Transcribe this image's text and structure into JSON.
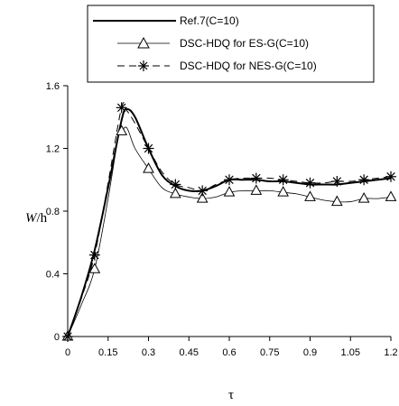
{
  "chart_data": {
    "type": "line",
    "title": "",
    "xlabel": "τ",
    "ylabel": "W/h",
    "ylabel_parts": {
      "italic": "W",
      "rest": "/h"
    },
    "xlim": [
      0,
      1.2
    ],
    "ylim": [
      0,
      1.6
    ],
    "xticks": [
      "0",
      "0.15",
      "0.3",
      "0.45",
      "0.6",
      "0.75",
      "0.9",
      "1.05",
      "1.2"
    ],
    "yticks": [
      "0",
      "0.4",
      "0.8",
      "1.2",
      "1.6"
    ],
    "grid": false,
    "legend_position": "top",
    "series": [
      {
        "name": "Ref.7(C=10)",
        "style": "solid",
        "marker": "none",
        "x": [
          0,
          0.05,
          0.1,
          0.15,
          0.2,
          0.22,
          0.25,
          0.3,
          0.35,
          0.4,
          0.45,
          0.5,
          0.55,
          0.6,
          0.65,
          0.7,
          0.75,
          0.8,
          0.85,
          0.9,
          0.95,
          1.0,
          1.05,
          1.1,
          1.15,
          1.2
        ],
        "y": [
          0,
          0.25,
          0.55,
          0.95,
          1.38,
          1.45,
          1.4,
          1.2,
          1.03,
          0.96,
          0.93,
          0.93,
          0.96,
          1.0,
          1.0,
          1.0,
          0.99,
          0.99,
          0.98,
          0.97,
          0.97,
          0.97,
          0.98,
          0.99,
          1.0,
          1.01
        ]
      },
      {
        "name": "DSC-HDQ for ES-G(C=10)",
        "style": "solid-thin",
        "marker": "triangle",
        "x": [
          0,
          0.05,
          0.1,
          0.15,
          0.19,
          0.2,
          0.22,
          0.25,
          0.3,
          0.35,
          0.4,
          0.45,
          0.5,
          0.55,
          0.6,
          0.65,
          0.7,
          0.75,
          0.8,
          0.85,
          0.9,
          0.95,
          1.0,
          1.05,
          1.1,
          1.15,
          1.2
        ],
        "y": [
          0,
          0.2,
          0.43,
          0.88,
          1.3,
          1.31,
          1.33,
          1.2,
          1.07,
          0.95,
          0.91,
          0.89,
          0.88,
          0.89,
          0.92,
          0.93,
          0.93,
          0.93,
          0.92,
          0.91,
          0.89,
          0.87,
          0.86,
          0.86,
          0.88,
          0.88,
          0.89
        ],
        "marker_x": [
          0,
          0.1,
          0.2,
          0.3,
          0.4,
          0.5,
          0.6,
          0.7,
          0.8,
          0.9,
          1.0,
          1.1,
          1.2
        ],
        "marker_y": [
          0,
          0.43,
          1.31,
          1.07,
          0.91,
          0.88,
          0.92,
          0.93,
          0.92,
          0.89,
          0.86,
          0.88,
          0.89
        ]
      },
      {
        "name": "DSC-HDQ for NES-G(C=10)",
        "style": "dashed",
        "marker": "asterisk",
        "x": [
          0,
          0.05,
          0.1,
          0.15,
          0.2,
          0.22,
          0.25,
          0.3,
          0.35,
          0.4,
          0.45,
          0.5,
          0.55,
          0.6,
          0.65,
          0.7,
          0.75,
          0.8,
          0.85,
          0.9,
          0.95,
          1.0,
          1.05,
          1.1,
          1.15,
          1.2
        ],
        "y": [
          0,
          0.24,
          0.52,
          0.98,
          1.46,
          1.44,
          1.36,
          1.2,
          1.05,
          0.97,
          0.95,
          0.93,
          0.97,
          1.0,
          1.01,
          1.01,
          1.01,
          1.0,
          0.99,
          0.98,
          0.98,
          0.99,
          0.99,
          1.0,
          1.01,
          1.02
        ],
        "marker_x": [
          0,
          0.1,
          0.2,
          0.3,
          0.4,
          0.5,
          0.6,
          0.7,
          0.8,
          0.9,
          1.0,
          1.1,
          1.2
        ],
        "marker_y": [
          0,
          0.52,
          1.46,
          1.2,
          0.97,
          0.93,
          1.0,
          1.01,
          1.0,
          0.98,
          0.99,
          1.0,
          1.02
        ]
      }
    ]
  }
}
